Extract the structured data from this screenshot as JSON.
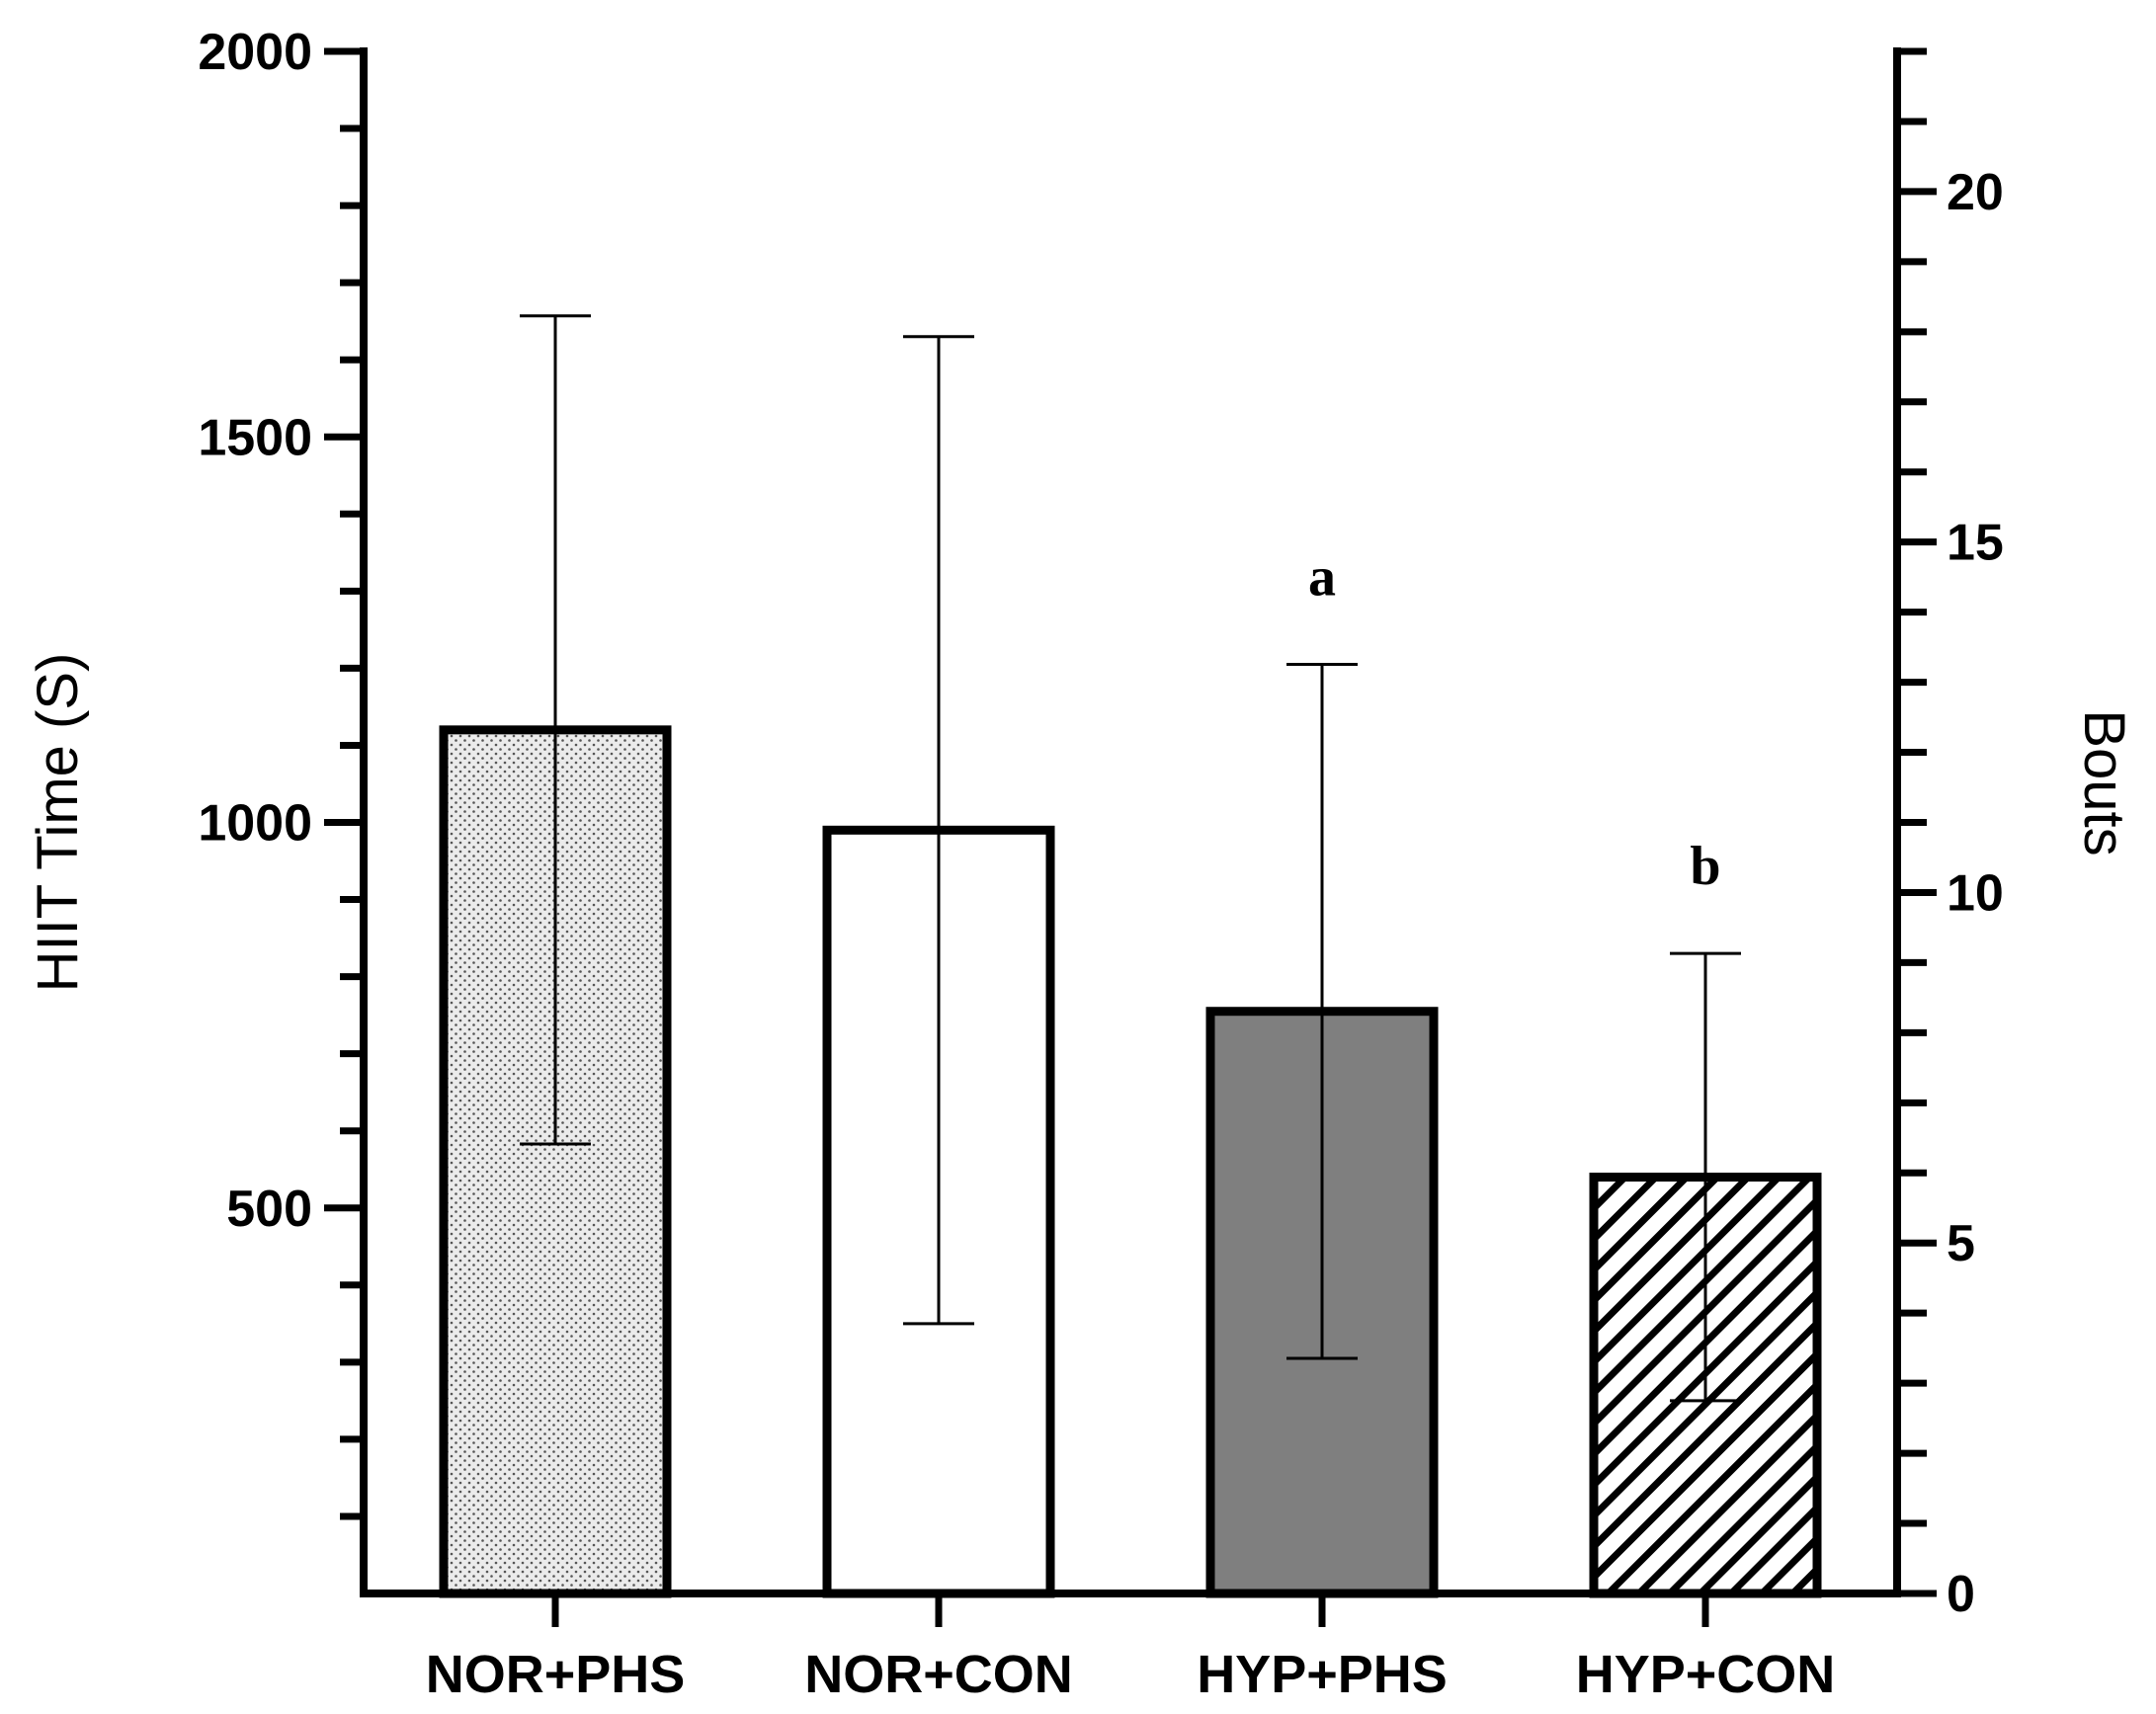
{
  "chart_data": {
    "type": "bar",
    "categories": [
      "NOR+PHS",
      "NOR+CON",
      "HYP+PHS",
      "HYP+CON"
    ],
    "values": [
      1120,
      990,
      755,
      540
    ],
    "errors": [
      537,
      640,
      450,
      290
    ],
    "annotations": [
      "",
      "",
      "a",
      "b"
    ],
    "fills": [
      "dots",
      "white",
      "gray",
      "hatch"
    ],
    "ylabel": "HIIT Time  (S)",
    "y2label": "Bouts",
    "ylim": [
      0,
      2000
    ],
    "y2lim": [
      0,
      22
    ],
    "yticks": [
      500,
      1000,
      1500,
      2000
    ],
    "y2ticks": [
      0,
      5,
      10,
      15,
      20
    ],
    "grid": false,
    "colors": {
      "axis": "#000000",
      "gray_bar": "#7f7f7f",
      "bar_edge": "#000000"
    }
  }
}
